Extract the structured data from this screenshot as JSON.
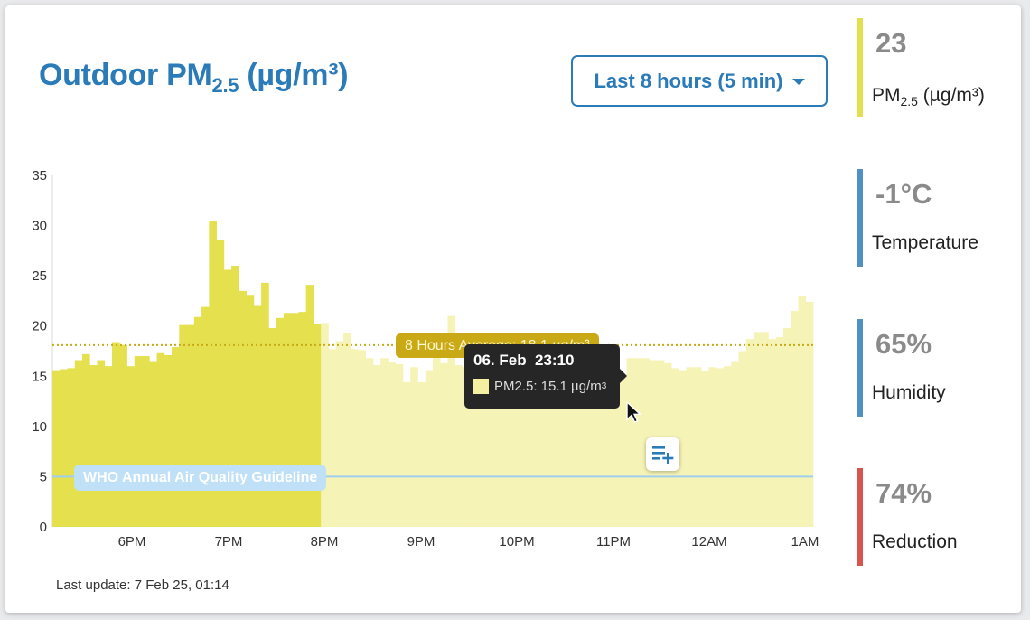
{
  "header": {
    "title_prefix": "Outdoor PM",
    "title_sub": "2.5",
    "title_suffix": " (µg/m³)",
    "range_button_label": "Last 8 hours (5 min)"
  },
  "chart_data": {
    "type": "bar",
    "ylim": [
      0,
      35
    ],
    "y_ticks": [
      "35",
      "30",
      "25",
      "20",
      "15",
      "10",
      "5",
      "0"
    ],
    "x_ticks": [
      "6PM",
      "7PM",
      "8PM",
      "9PM",
      "10PM",
      "11PM",
      "12AM",
      "1AM"
    ],
    "series": [
      {
        "name": "PM2.5",
        "unit": "µg/m³",
        "color": "#e4e04e",
        "dimmed_color": "#f6f3b6",
        "values": [
          15.6,
          15.7,
          15.8,
          16.6,
          17.2,
          16.1,
          16.6,
          16.0,
          18.4,
          18.1,
          16.0,
          17.0,
          17.0,
          16.5,
          17.3,
          17.1,
          17.9,
          20.1,
          20.1,
          20.9,
          21.9,
          30.5,
          28.6,
          25.6,
          26.0,
          23.5,
          23.1,
          22.0,
          24.3,
          19.8,
          20.8,
          21.3,
          21.3,
          21.4,
          24.1,
          20.2,
          20.3,
          17.7,
          18.5,
          19.3,
          17.7,
          17.6,
          16.8,
          16.1,
          16.8,
          16.4,
          16.2,
          14.4,
          15.9,
          14.4,
          15.6,
          17.3,
          16.3,
          21.0,
          16.1,
          15.9,
          17.3,
          17.6,
          18.8,
          16.3,
          17.4,
          15.9,
          14.8,
          16.2,
          16.3,
          15.4,
          15.3,
          15.3,
          15.3,
          15.6,
          17.0,
          17.2,
          15.0,
          15.0,
          16.0,
          15.6,
          15.0,
          16.8,
          16.8,
          16.8,
          16.6,
          16.6,
          16.3,
          15.8,
          15.6,
          15.9,
          15.9,
          15.5,
          15.9,
          15.8,
          16.0,
          16.5,
          17.5,
          18.7,
          19.4,
          19.4,
          18.7,
          18.9,
          19.8,
          21.5,
          23.0,
          22.4
        ]
      }
    ],
    "average": {
      "value": 18.1,
      "label": "8 Hours Average: 18.1 µg/m³",
      "color": "#c9a916"
    },
    "guideline": {
      "value": 5,
      "label": "WHO Annual Air Quality Guideline",
      "color": "#bfe0f6"
    },
    "highlight_until_index": 35
  },
  "tooltip": {
    "date": "06. Feb  23:10",
    "series_label": "PM2.5: 15.1 µg/m",
    "superscript": "3"
  },
  "footer": {
    "last_update": "Last update: 7 Feb 25, 01:14"
  },
  "metrics": [
    {
      "value": "23",
      "label_prefix": "PM",
      "label_sub": "2.5",
      "label_suffix": " (µg/m³)",
      "color": "#e3e04f"
    },
    {
      "value": "-1°C",
      "label": "Temperature",
      "color": "#4f90c7"
    },
    {
      "value": "65%",
      "label": "Humidity",
      "color": "#4f90c7"
    },
    {
      "value": "74%",
      "label": "Reduction",
      "color": "#d9534f"
    }
  ],
  "icons": {
    "menu": "add-to-list-icon",
    "cursor": "mouse-pointer-icon"
  }
}
